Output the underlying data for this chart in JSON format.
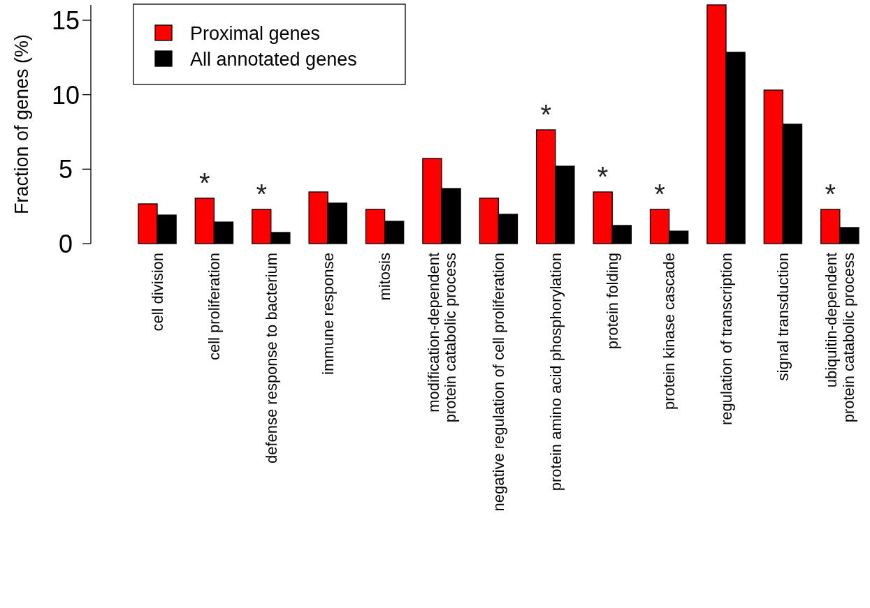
{
  "chart_data": {
    "type": "bar",
    "ylabel": "Fraction of genes (%)",
    "categories": [
      "cell division",
      "cell proliferation",
      "defense response to bacterium",
      "immune response",
      "mitosis",
      "modification-dependent\nprotein catabolic process",
      "negative regulation of cell proliferation",
      "protein amino acid phosphorylation",
      "protein folding",
      "protein kinase cascade",
      "regulation of transcription",
      "signal transduction",
      "ubiquitin-dependent\nprotein catabolic process"
    ],
    "series": [
      {
        "name": "Proximal genes",
        "color": "#ff0000",
        "values": [
          2.67,
          3.05,
          2.3,
          3.47,
          2.3,
          5.72,
          3.05,
          7.64,
          3.47,
          2.3,
          16.03,
          10.31,
          2.3
        ]
      },
      {
        "name": "All annotated genes",
        "color": "#000000",
        "values": [
          1.92,
          1.45,
          0.75,
          2.72,
          1.5,
          3.7,
          1.97,
          5.2,
          1.22,
          0.84,
          12.85,
          8.02,
          1.08
        ]
      }
    ],
    "ylim": [
      0,
      16.03
    ],
    "yticks": [
      0,
      5,
      10,
      15
    ],
    "grid": false,
    "legend": "top left",
    "annotations": [
      {
        "text": "*",
        "x": "cell proliferation",
        "y": 3.05
      },
      {
        "text": "*",
        "x": "defense response to bacterium",
        "y": 2.3
      },
      {
        "text": "*",
        "x": "protein amino acid phosphorylation",
        "y": 7.64
      },
      {
        "text": "*",
        "x": "protein folding",
        "y": 3.47
      },
      {
        "text": "*",
        "x": "protein kinase cascade",
        "y": 2.3
      },
      {
        "text": "*",
        "x": "ubiquitin-dependent\nprotein catabolic process",
        "y": 2.3
      }
    ]
  }
}
